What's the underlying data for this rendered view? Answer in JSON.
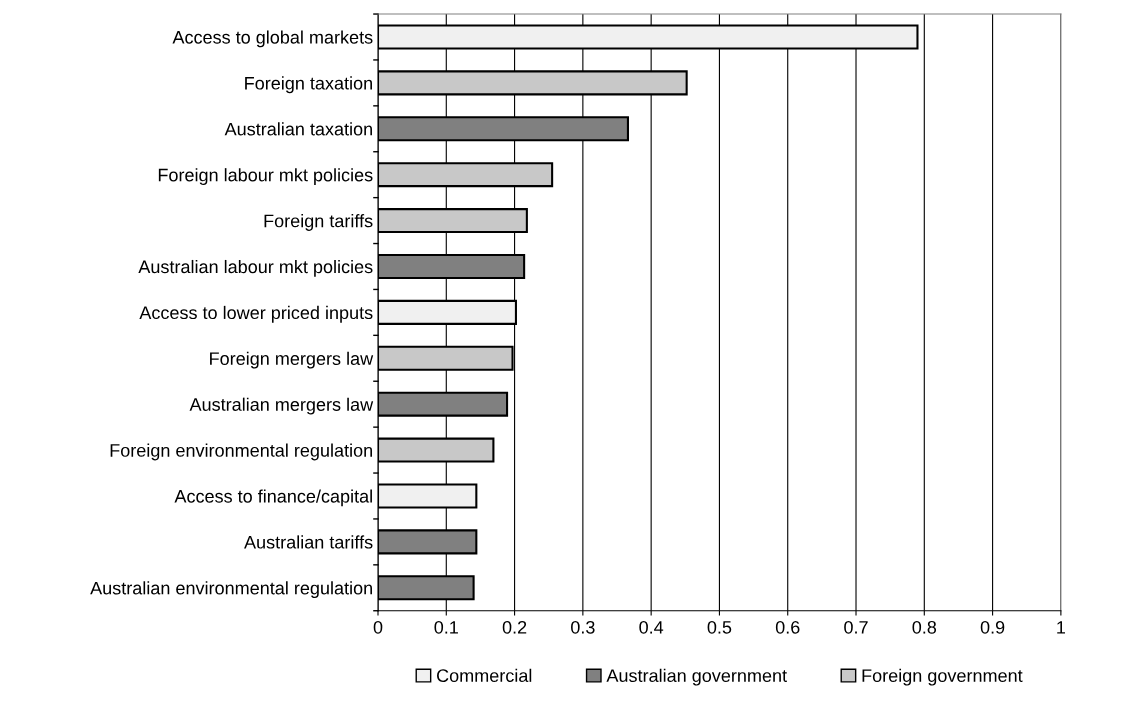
{
  "chart_data": {
    "type": "bar",
    "orientation": "horizontal",
    "categories": [
      "Access to global markets",
      "Foreign taxation",
      "Australian taxation",
      "Foreign labour mkt policies",
      "Foreign tariffs",
      "Australian labour mkt policies",
      "Access to lower priced inputs",
      "Foreign mergers law",
      "Australian mergers law",
      "Foreign environmental regulation",
      "Access to finance/capital",
      "Australian tariffs",
      "Australian environmental regulation"
    ],
    "series": [
      {
        "name": "Commercial",
        "color": "#f0f0f0",
        "values": [
          0.79,
          null,
          null,
          null,
          null,
          null,
          0.202,
          null,
          null,
          null,
          0.144,
          null,
          null
        ]
      },
      {
        "name": "Australian government",
        "color": "#808080",
        "values": [
          null,
          null,
          0.366,
          null,
          null,
          0.214,
          null,
          null,
          0.189,
          null,
          null,
          0.144,
          0.14
        ]
      },
      {
        "name": "Foreign government",
        "color": "#c8c8c8",
        "values": [
          null,
          0.452,
          null,
          0.255,
          0.218,
          null,
          null,
          0.197,
          null,
          0.169,
          null,
          null,
          null
        ]
      }
    ],
    "xlim": [
      0,
      1
    ],
    "xticks": [
      0,
      0.1,
      0.2,
      0.3,
      0.4,
      0.5,
      0.6,
      0.7,
      0.8,
      0.9,
      1
    ],
    "grid": "x",
    "legend": "bottom"
  }
}
